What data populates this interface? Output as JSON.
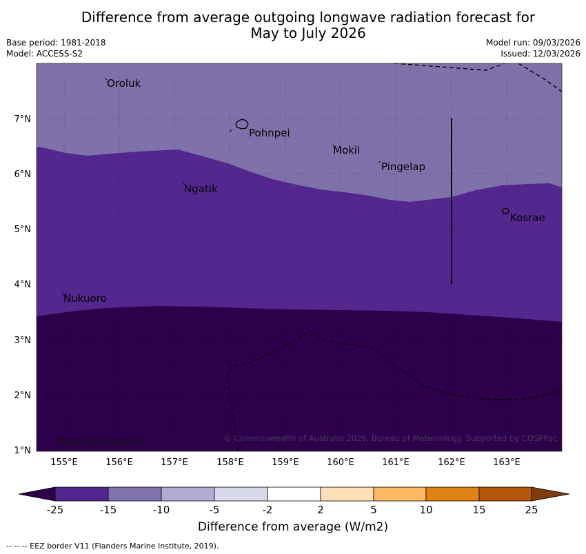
{
  "title": {
    "line1": "Difference from average outgoing longwave radiation forecast for",
    "line2": "May to July 2026"
  },
  "meta": {
    "base_period": "Base period: 1981-2018",
    "model": "Model: ACCESS-S2",
    "model_run": "Model run: 09/03/2026",
    "issued": "Issued: 12/03/2026"
  },
  "map": {
    "lat_labels": [
      "7°N",
      "6°N",
      "5°N",
      "4°N",
      "3°N",
      "2°N",
      "1°N"
    ],
    "lon_labels": [
      "155°E",
      "156°E",
      "157°E",
      "158°E",
      "159°E",
      "160°E",
      "161°E",
      "162°E",
      "163°E"
    ],
    "places": [
      "Oroluk",
      "Pohnpei",
      "Mokil",
      "Pingelap",
      "Ngatik",
      "Kosrae",
      "Nukuoro",
      "Kapingamarangi"
    ],
    "copyright": "© Commonwealth of Australia 2026, Bureau of Meteorology. Supported by COSPPac",
    "colors": {
      "band_-10_-5": "#7f72ab",
      "band_-25_-15": "#54278f",
      "band_lt_-25": "#2d004b",
      "grid": "#000000"
    }
  },
  "colorbar": {
    "ticks": [
      "-25",
      "-15",
      "-10",
      "-5",
      "-2",
      "2",
      "5",
      "10",
      "15",
      "25"
    ],
    "colors": [
      "#2d004b",
      "#54278f",
      "#8073ac",
      "#b2abd2",
      "#d8daeb",
      "#ffffff",
      "#fee0b6",
      "#fdb863",
      "#e08214",
      "#b35806",
      "#7f3b08"
    ],
    "label": "Difference from average (W/m2)"
  },
  "footnote": "-- -- -- EEZ border V11 (Flanders Marine Institute, 2019)."
}
